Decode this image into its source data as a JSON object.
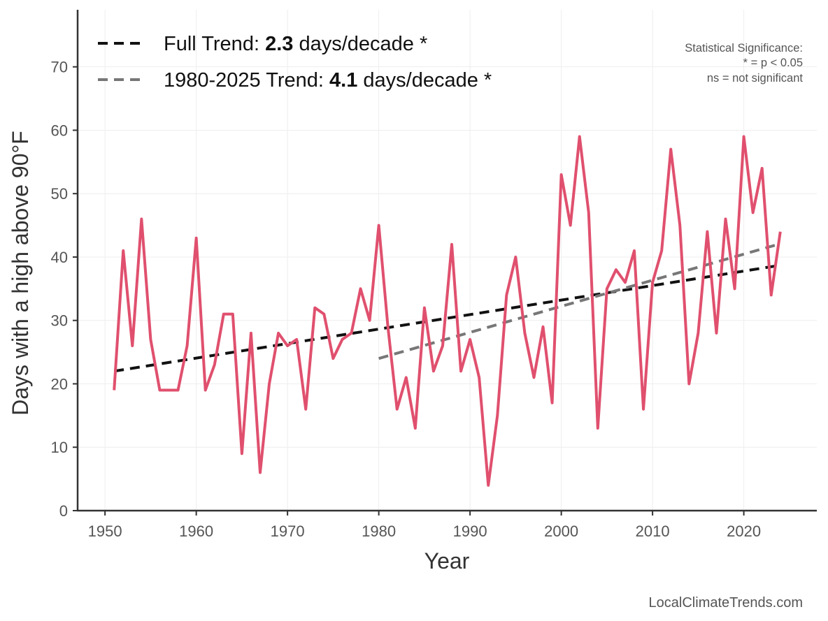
{
  "chart_data": {
    "type": "line",
    "xlabel": "Year",
    "ylabel": "Days with a high above 90°F",
    "xlim": [
      1947,
      2028
    ],
    "ylim": [
      0,
      79
    ],
    "xticks": [
      1950,
      1960,
      1970,
      1980,
      1990,
      2000,
      2010,
      2020
    ],
    "yticks": [
      0,
      10,
      20,
      30,
      40,
      50,
      60,
      70
    ],
    "grid": true,
    "legend_position": "top-left",
    "colors": {
      "series": "#e0506e",
      "full_trend": "#111111",
      "recent_trend": "#777777",
      "axis": "#333333",
      "grid": "#eeeeee"
    },
    "series": [
      {
        "name": "Days with a high above 90°F",
        "x": [
          1951,
          1952,
          1953,
          1954,
          1955,
          1956,
          1957,
          1958,
          1959,
          1960,
          1961,
          1962,
          1963,
          1964,
          1965,
          1966,
          1967,
          1968,
          1969,
          1970,
          1971,
          1972,
          1973,
          1974,
          1975,
          1976,
          1977,
          1978,
          1979,
          1980,
          1981,
          1982,
          1983,
          1984,
          1985,
          1986,
          1987,
          1988,
          1989,
          1990,
          1991,
          1992,
          1993,
          1994,
          1995,
          1996,
          1997,
          1998,
          1999,
          2000,
          2001,
          2002,
          2003,
          2004,
          2005,
          2006,
          2007,
          2008,
          2009,
          2010,
          2011,
          2012,
          2013,
          2014,
          2015,
          2016,
          2017,
          2018,
          2019,
          2020,
          2021,
          2022,
          2023,
          2024
        ],
        "values": [
          19,
          41,
          26,
          46,
          27,
          19,
          19,
          19,
          26,
          43,
          19,
          23,
          31,
          31,
          9,
          28,
          6,
          20,
          28,
          26,
          27,
          16,
          32,
          31,
          24,
          27,
          28,
          35,
          30,
          45,
          29,
          16,
          21,
          13,
          32,
          22,
          26,
          42,
          22,
          27,
          21,
          4,
          15,
          34,
          40,
          28,
          21,
          29,
          17,
          53,
          45,
          59,
          47,
          13,
          35,
          38,
          36,
          41,
          16,
          36,
          41,
          57,
          45,
          20,
          28,
          44,
          28,
          46,
          35,
          59,
          47,
          54,
          34,
          44
        ]
      }
    ],
    "trends": [
      {
        "name": "Full Trend",
        "label_prefix": "Full Trend: ",
        "rate": "2.3",
        "label_suffix": " days/decade *",
        "x": [
          1951,
          2024
        ],
        "y": [
          22,
          38.7
        ]
      },
      {
        "name": "1980-2025 Trend",
        "label_prefix": "1980-2025 Trend: ",
        "rate": "4.1",
        "label_suffix": " days/decade *",
        "x": [
          1980,
          2024
        ],
        "y": [
          24,
          42.1
        ]
      }
    ],
    "annotations": {
      "significance": [
        "Statistical Significance:",
        "* = p < 0.05",
        "ns = not significant"
      ],
      "source": "LocalClimateTrends.com"
    }
  }
}
